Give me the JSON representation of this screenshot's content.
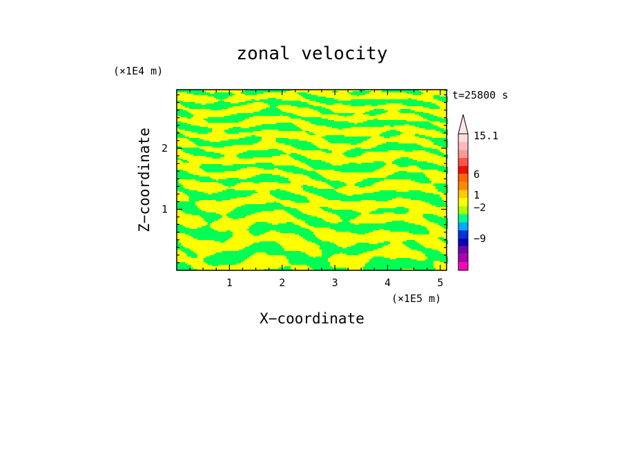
{
  "chart_data": {
    "type": "heatmap",
    "title": "zonal velocity",
    "xlabel": "X−coordinate",
    "ylabel": "Z−coordinate",
    "x_units": "(×1E5 m)",
    "y_units": "(×1E4 m)",
    "time_label": "t=25800 s",
    "xlim": [
      0,
      5.12
    ],
    "ylim": [
      0,
      2.96
    ],
    "x_ticks": [
      1,
      2,
      3,
      4,
      5
    ],
    "x_tick_labels": [
      "1",
      "2",
      "3",
      "4",
      "5"
    ],
    "y_ticks": [
      1,
      2
    ],
    "y_tick_labels": [
      "1",
      "2"
    ],
    "field_levels": [
      {
        "range": "-2 to 1",
        "color": "#00ff55"
      },
      {
        "range": "above 1",
        "color": "#ffff00"
      }
    ],
    "colorbar": {
      "labels": [
        {
          "text": "15.1",
          "value": 15.1
        },
        {
          "text": "6",
          "value": 6
        },
        {
          "text": "1",
          "value": 1
        },
        {
          "text": "−2",
          "value": -2
        },
        {
          "text": "−9",
          "value": -9
        }
      ],
      "bands": [
        {
          "color": "#ff00bb"
        },
        {
          "color": "#aa00aa"
        },
        {
          "color": "#7700aa"
        },
        {
          "color": "#1100bb"
        },
        {
          "color": "#0033dd"
        },
        {
          "color": "#00aaff"
        },
        {
          "color": "#00ff88"
        },
        {
          "color": "#aaff00"
        },
        {
          "color": "#ffff00"
        },
        {
          "color": "#ffcc00"
        },
        {
          "color": "#ff8800"
        },
        {
          "color": "#ff6600"
        },
        {
          "color": "#ee1100"
        },
        {
          "color": "#ff5544"
        },
        {
          "color": "#ff9999"
        },
        {
          "color": "#ffbbbb"
        },
        {
          "color": "#ffdddd"
        }
      ]
    }
  }
}
